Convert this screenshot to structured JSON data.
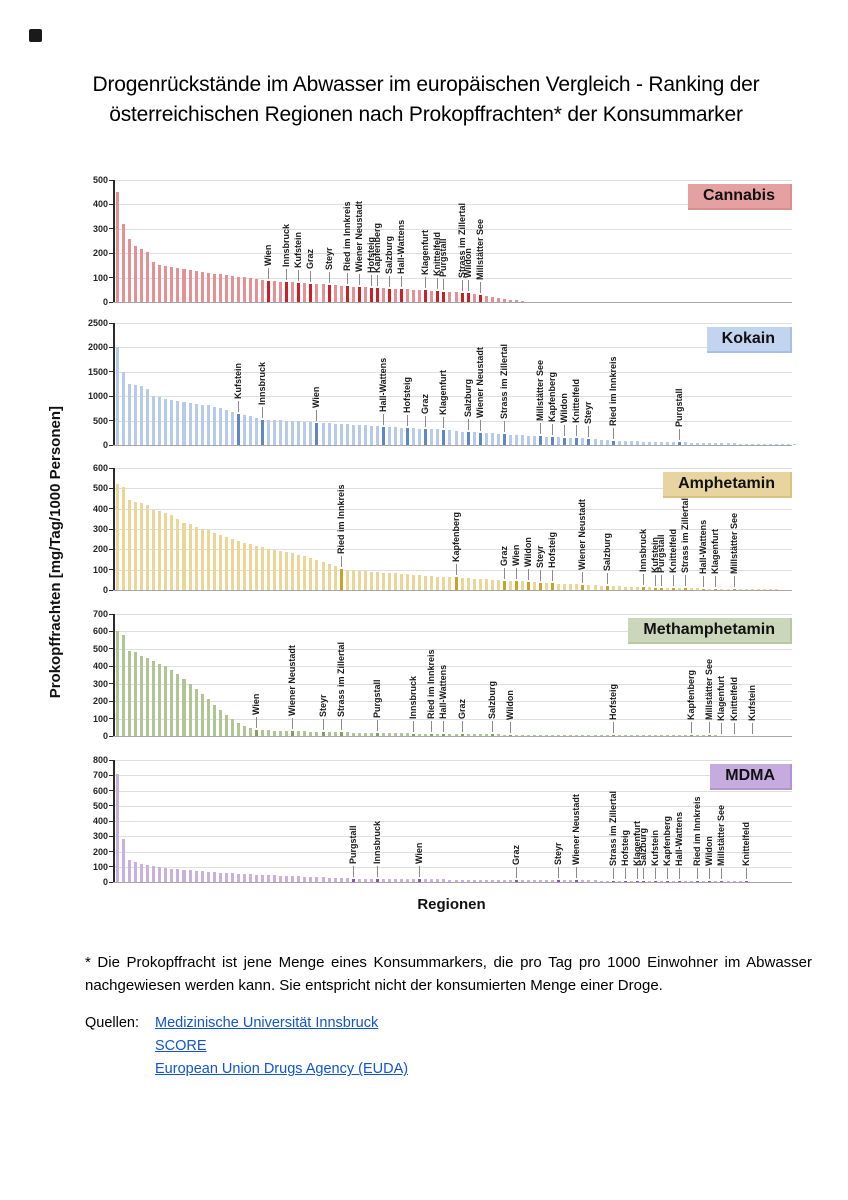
{
  "page": {
    "title_line1": "Drogenrückstände im Abwasser im europäischen Vergleich - Ranking der",
    "title_line2": "österreichischen Regionen nach Prokopffrachten*  der Konsummarker",
    "ylabel": "Prokopffrachten [mg/Tag/1000 Personen]",
    "xlabel": "Regionen",
    "footnote": "* Die Prokopffracht ist jene Menge eines Konsummarkers, die pro Tag pro 1000 Einwohner im Abwasser nachgewiesen werden kann. Sie entspricht nicht der konsumierten Menge einer Droge.",
    "sources_label": "Quellen:",
    "sources": [
      {
        "label": "Medizinische Universität Innsbruck"
      },
      {
        "label": "SCORE"
      },
      {
        "label": "European Union Drugs Agency (EUDA)"
      }
    ],
    "link_color": "#1155CC"
  },
  "chart_data": [
    {
      "type": "bar",
      "title": "Cannabis",
      "xlabel": "Regionen",
      "ylabel": "Prokopffrachten [mg/Tag/1000 Personen]",
      "ylim": [
        0,
        500
      ],
      "yticks": [
        0,
        100,
        200,
        300,
        400,
        500
      ],
      "grid": true,
      "legend_position": "top-right",
      "slots": 112,
      "bar_color": "#e59193",
      "highlight_color": "#cc2026",
      "legend_bg": "#e5a0a2",
      "legend_border": "#d98f91",
      "values": [
        450,
        320,
        258,
        228,
        218,
        205,
        165,
        152,
        148,
        145,
        140,
        136,
        132,
        128,
        124,
        120,
        116,
        113,
        110,
        107,
        104,
        101,
        98,
        95,
        92,
        88,
        86,
        84,
        82,
        80,
        78,
        76,
        74,
        73,
        72,
        70,
        68,
        66,
        64,
        62,
        61,
        60,
        58,
        57,
        56,
        55,
        54,
        53,
        52,
        51,
        50,
        48,
        46,
        44,
        43,
        41,
        39,
        37,
        35,
        32,
        28,
        24,
        20,
        16,
        12,
        9,
        7,
        5
      ],
      "labels": [
        {
          "index": 25,
          "label": "Wien"
        },
        {
          "index": 28,
          "label": "Innsbruck"
        },
        {
          "index": 30,
          "label": "Kufstein"
        },
        {
          "index": 32,
          "label": "Graz"
        },
        {
          "index": 35,
          "label": "Steyr"
        },
        {
          "index": 38,
          "label": "Ried im Innkreis"
        },
        {
          "index": 40,
          "label": "Wiener Neustadt"
        },
        {
          "index": 42,
          "label": "Hofsteig"
        },
        {
          "index": 43,
          "label": "Kapfenberg"
        },
        {
          "index": 45,
          "label": "Salzburg"
        },
        {
          "index": 47,
          "label": "Hall-Wattens"
        },
        {
          "index": 51,
          "label": "Klagenfurt"
        },
        {
          "index": 53,
          "label": "Knittelfeld"
        },
        {
          "index": 54,
          "label": "Purgstall"
        },
        {
          "index": 57,
          "label": "Strass im Zillertal"
        },
        {
          "index": 58,
          "label": "Wildon"
        },
        {
          "index": 60,
          "label": "Millstätter See"
        }
      ]
    },
    {
      "type": "bar",
      "title": "Kokain",
      "xlabel": "Regionen",
      "ylabel": "Prokopffrachten [mg/Tag/1000 Personen]",
      "ylim": [
        0,
        2500
      ],
      "yticks": [
        0,
        500,
        1000,
        1500,
        2000,
        2500
      ],
      "grid": true,
      "legend_position": "top-right",
      "slots": 112,
      "bar_color": "#b6cbe9",
      "highlight_color": "#5d87c8",
      "legend_bg": "#c3d4f0",
      "legend_border": "#a9bfe2",
      "values": [
        2000,
        1500,
        1260,
        1230,
        1210,
        1150,
        1000,
        975,
        950,
        930,
        910,
        890,
        870,
        850,
        830,
        810,
        780,
        750,
        710,
        675,
        640,
        620,
        600,
        560,
        520,
        515,
        510,
        505,
        500,
        495,
        485,
        475,
        465,
        455,
        450,
        445,
        440,
        432,
        425,
        418,
        410,
        400,
        390,
        380,
        370,
        365,
        360,
        352,
        345,
        342,
        338,
        335,
        328,
        318,
        310,
        298,
        288,
        275,
        265,
        260,
        255,
        248,
        240,
        232,
        225,
        215,
        208,
        200,
        192,
        184,
        175,
        170,
        165,
        158,
        150,
        145,
        140,
        134,
        128,
        120,
        110,
        100,
        90,
        85,
        82,
        78,
        75,
        72,
        70,
        67,
        64,
        61,
        58,
        55,
        52,
        50,
        47,
        45,
        42,
        40,
        38,
        35,
        33,
        30,
        28,
        26,
        24,
        22,
        20,
        18,
        16,
        15,
        14
      ],
      "labels": [
        {
          "index": 20,
          "label": "Kufstein"
        },
        {
          "index": 24,
          "label": "Innsbruck"
        },
        {
          "index": 33,
          "label": "Wien"
        },
        {
          "index": 44,
          "label": "Hall-Wattens"
        },
        {
          "index": 48,
          "label": "Hofsteig"
        },
        {
          "index": 51,
          "label": "Graz"
        },
        {
          "index": 54,
          "label": "Klagenfurt"
        },
        {
          "index": 58,
          "label": "Salzburg"
        },
        {
          "index": 60,
          "label": "Wiener Neustadt"
        },
        {
          "index": 64,
          "label": "Strass im Zillertal"
        },
        {
          "index": 70,
          "label": "Millstätter See"
        },
        {
          "index": 72,
          "label": "Kapfenberg"
        },
        {
          "index": 74,
          "label": "Wildon"
        },
        {
          "index": 76,
          "label": "Knittelfeld"
        },
        {
          "index": 78,
          "label": "Steyr"
        },
        {
          "index": 82,
          "label": "Ried im Innkreis"
        },
        {
          "index": 93,
          "label": "Purgstall"
        }
      ]
    },
    {
      "type": "bar",
      "title": "Amphetamin",
      "xlabel": "Regionen",
      "ylabel": "Prokopffrachten [mg/Tag/1000 Personen]",
      "ylim": [
        0,
        600
      ],
      "yticks": [
        0,
        100,
        200,
        300,
        400,
        500,
        600
      ],
      "grid": true,
      "legend_position": "top-right",
      "slots": 112,
      "bar_color": "#ead797",
      "highlight_color": "#c9a227",
      "legend_bg": "#e7d49e",
      "legend_border": "#d8c184",
      "values": [
        520,
        505,
        445,
        435,
        430,
        420,
        395,
        390,
        380,
        370,
        350,
        332,
        325,
        312,
        300,
        295,
        282,
        272,
        262,
        252,
        242,
        232,
        225,
        218,
        210,
        204,
        198,
        192,
        186,
        180,
        172,
        165,
        158,
        150,
        140,
        130,
        118,
        105,
        100,
        97,
        95,
        92,
        90,
        88,
        86,
        84,
        82,
        80,
        78,
        76,
        73,
        70,
        68,
        66,
        65,
        63,
        62,
        60,
        58,
        56,
        54,
        52,
        50,
        48,
        46,
        45,
        43,
        42,
        40,
        38,
        36,
        34,
        33,
        31,
        30,
        29,
        28,
        27,
        26,
        24,
        22,
        21,
        20,
        18,
        17,
        16,
        15,
        14,
        13,
        12,
        11,
        10,
        10,
        9,
        9,
        8,
        8,
        7,
        7,
        6,
        6,
        5,
        5,
        4,
        4,
        4,
        3,
        3,
        3,
        3
      ],
      "labels": [
        {
          "index": 37,
          "label": "Ried im Innkreis"
        },
        {
          "index": 56,
          "label": "Kapfenberg"
        },
        {
          "index": 64,
          "label": "Graz"
        },
        {
          "index": 66,
          "label": "Wien"
        },
        {
          "index": 68,
          "label": "Wildon"
        },
        {
          "index": 70,
          "label": "Steyr"
        },
        {
          "index": 72,
          "label": "Hofsteig"
        },
        {
          "index": 77,
          "label": "Wiener Neustadt"
        },
        {
          "index": 81,
          "label": "Salzburg"
        },
        {
          "index": 87,
          "label": "Innsbruck"
        },
        {
          "index": 89,
          "label": "Kufstein"
        },
        {
          "index": 90,
          "label": "Purgstall"
        },
        {
          "index": 92,
          "label": "Knittelfeld"
        },
        {
          "index": 94,
          "label": "Strass im Zillertal"
        },
        {
          "index": 97,
          "label": "Hall-Wattens"
        },
        {
          "index": 99,
          "label": "Klagenfurt"
        },
        {
          "index": 102,
          "label": "Millstätter See"
        }
      ]
    },
    {
      "type": "bar",
      "title": "Methamphetamin",
      "xlabel": "Regionen",
      "ylabel": "Prokopffrachten [mg/Tag/1000 Personen]",
      "ylim": [
        0,
        700
      ],
      "yticks": [
        0,
        100,
        200,
        300,
        400,
        500,
        600,
        700
      ],
      "grid": true,
      "legend_position": "top-right",
      "slots": 112,
      "bar_color": "#afc593",
      "highlight_color": "#7fa25e",
      "legend_bg": "#ccd6ba",
      "legend_border": "#b8c6a2",
      "values": [
        600,
        580,
        490,
        480,
        460,
        445,
        430,
        415,
        400,
        380,
        355,
        330,
        300,
        270,
        240,
        210,
        180,
        150,
        120,
        95,
        75,
        60,
        48,
        35,
        33,
        32,
        31,
        30,
        29,
        28,
        27,
        26,
        25,
        24,
        24,
        23,
        22,
        22,
        21,
        20,
        20,
        19,
        18,
        18,
        17,
        16,
        16,
        15,
        15,
        14,
        14,
        13,
        13,
        12,
        12,
        11,
        11,
        11,
        10,
        10,
        10,
        9,
        9,
        9,
        8,
        8,
        8,
        7,
        7,
        7,
        7,
        6,
        6,
        6,
        6,
        6,
        5,
        5,
        5,
        5,
        5,
        5,
        5,
        4,
        4,
        4,
        4,
        4,
        4,
        4,
        4,
        3,
        3,
        3,
        3,
        3,
        3,
        3,
        3,
        3,
        2,
        2,
        2,
        2,
        2,
        2,
        2,
        2,
        2,
        2,
        2,
        2
      ],
      "labels": [
        {
          "index": 23,
          "label": "Wien"
        },
        {
          "index": 29,
          "label": "Wiener Neustadt"
        },
        {
          "index": 34,
          "label": "Steyr"
        },
        {
          "index": 37,
          "label": "Strass im Zillertal"
        },
        {
          "index": 43,
          "label": "Purgstall"
        },
        {
          "index": 49,
          "label": "Innsbruck"
        },
        {
          "index": 52,
          "label": "Ried im Innkreis"
        },
        {
          "index": 54,
          "label": "Hall-Wattens"
        },
        {
          "index": 57,
          "label": "Graz"
        },
        {
          "index": 62,
          "label": "Salzburg"
        },
        {
          "index": 65,
          "label": "Wildon"
        },
        {
          "index": 82,
          "label": "Hofsteig"
        },
        {
          "index": 95,
          "label": "Kapfenberg"
        },
        {
          "index": 98,
          "label": "Millstätter See"
        },
        {
          "index": 100,
          "label": "Klagenfurt"
        },
        {
          "index": 102,
          "label": "Knittelfeld"
        },
        {
          "index": 105,
          "label": "Kufstein"
        }
      ]
    },
    {
      "type": "bar",
      "title": "MDMA",
      "xlabel": "Regionen",
      "ylabel": "Prokopffrachten [mg/Tag/1000 Personen]",
      "ylim": [
        0,
        800
      ],
      "yticks": [
        0,
        100,
        200,
        300,
        400,
        500,
        600,
        700,
        800
      ],
      "grid": true,
      "legend_position": "top-right",
      "slots": 112,
      "bar_color": "#c9b0dd",
      "highlight_color": "#8857b5",
      "legend_bg": "#c6abdf",
      "legend_border": "#b094cf",
      "values": [
        710,
        280,
        145,
        128,
        118,
        112,
        106,
        98,
        92,
        88,
        84,
        80,
        76,
        73,
        70,
        67,
        64,
        61,
        58,
        56,
        54,
        52,
        50,
        48,
        46,
        44,
        43,
        42,
        41,
        40,
        38,
        36,
        34,
        32,
        30,
        28,
        27,
        25,
        24,
        22,
        22,
        21,
        21,
        20,
        20,
        20,
        19,
        19,
        19,
        18,
        18,
        18,
        17,
        17,
        17,
        16,
        16,
        16,
        15,
        15,
        15,
        15,
        14,
        14,
        14,
        14,
        13,
        13,
        13,
        13,
        12,
        12,
        12,
        11,
        11,
        11,
        10,
        10,
        10,
        10,
        9,
        9,
        9,
        9,
        8,
        8,
        8,
        8,
        7,
        7,
        7,
        7,
        6,
        6,
        6,
        6,
        5,
        5,
        5,
        5,
        4,
        4,
        4,
        4,
        4,
        3,
        3,
        3,
        3,
        2,
        2,
        2
      ],
      "labels": [
        {
          "index": 39,
          "label": "Purgstall"
        },
        {
          "index": 43,
          "label": "Innsbruck"
        },
        {
          "index": 50,
          "label": "Wien"
        },
        {
          "index": 66,
          "label": "Graz"
        },
        {
          "index": 73,
          "label": "Steyr"
        },
        {
          "index": 76,
          "label": "Wiener Neustadt"
        },
        {
          "index": 82,
          "label": "Strass im Zillertal"
        },
        {
          "index": 84,
          "label": "Hofsteig"
        },
        {
          "index": 86,
          "label": "Klagenfurt"
        },
        {
          "index": 87,
          "label": "Salzburg"
        },
        {
          "index": 89,
          "label": "Kufstein"
        },
        {
          "index": 91,
          "label": "Kapfenberg"
        },
        {
          "index": 93,
          "label": "Hall-Wattens"
        },
        {
          "index": 96,
          "label": "Ried im Innkreis"
        },
        {
          "index": 98,
          "label": "Wildon"
        },
        {
          "index": 100,
          "label": "Millstätter See"
        },
        {
          "index": 104,
          "label": "Knittelfeld"
        }
      ]
    }
  ]
}
